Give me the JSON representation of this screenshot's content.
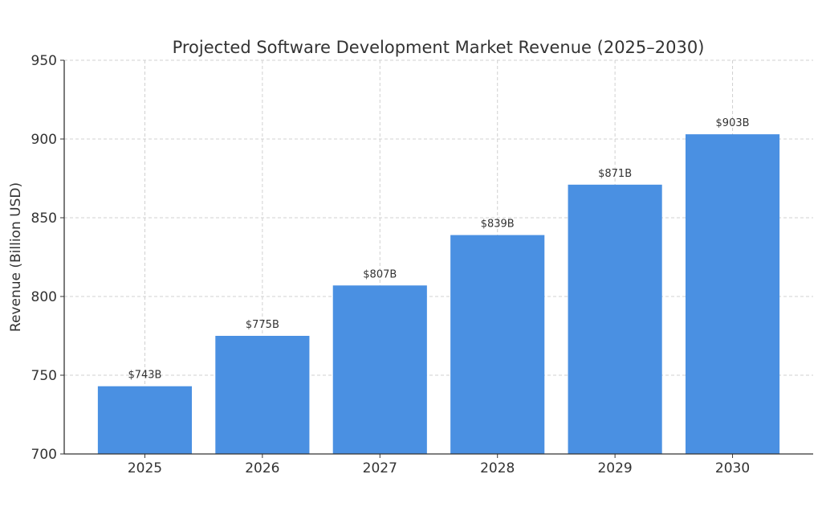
{
  "chart_data": {
    "type": "bar",
    "title": "Projected Software Development Market Revenue (2025–2030)",
    "xlabel": "",
    "ylabel": "Revenue (Billion USD)",
    "categories": [
      "2025",
      "2026",
      "2027",
      "2028",
      "2029",
      "2030"
    ],
    "values": [
      743,
      775,
      807,
      839,
      871,
      903
    ],
    "data_labels": [
      "$743B",
      "$775B",
      "$807B",
      "$839B",
      "$871B",
      "$903B"
    ],
    "ylim": [
      700,
      950
    ],
    "yticks": [
      "700",
      "750",
      "800",
      "850",
      "900",
      "950"
    ],
    "grid": true,
    "bar_color": "#4a90e2"
  }
}
